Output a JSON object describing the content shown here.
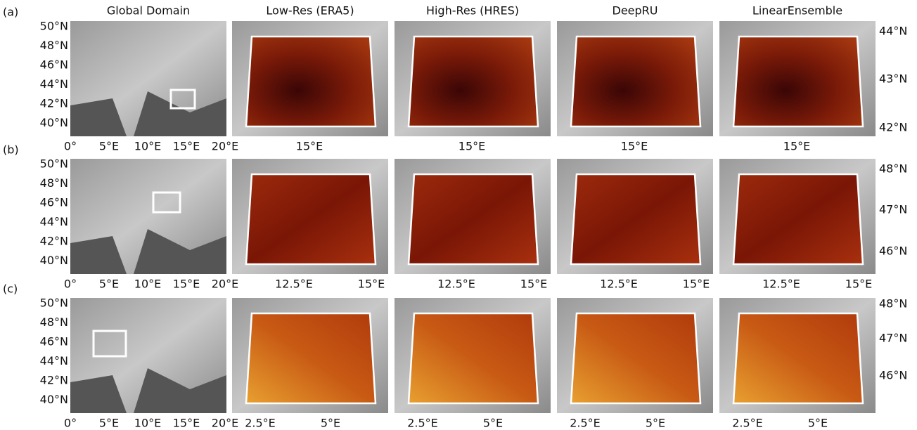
{
  "columns": [
    "Global Domain",
    "Low-Res (ERA5)",
    "High-Res (HRES)",
    "DeepRU",
    "LinearEnsemble"
  ],
  "global_yticks": [
    "50°N",
    "48°N",
    "46°N",
    "44°N",
    "42°N",
    "40°N"
  ],
  "global_xticks": [
    "0°",
    "5°E",
    "10°E",
    "15°E",
    "20°E"
  ],
  "rows": [
    {
      "label": "(a)",
      "region_xticks": [
        "15°E"
      ],
      "region_yticks": [
        "44°N",
        "43°N",
        "42°N"
      ]
    },
    {
      "label": "(b)",
      "region_xticks": [
        "12.5°E",
        "15°E"
      ],
      "region_yticks": [
        "48°N",
        "47°N",
        "46°N"
      ]
    },
    {
      "label": "(c)",
      "region_xticks": [
        "2.5°E",
        "5°E"
      ],
      "region_yticks": [
        "48°N",
        "47°N",
        "46°N"
      ]
    }
  ]
}
